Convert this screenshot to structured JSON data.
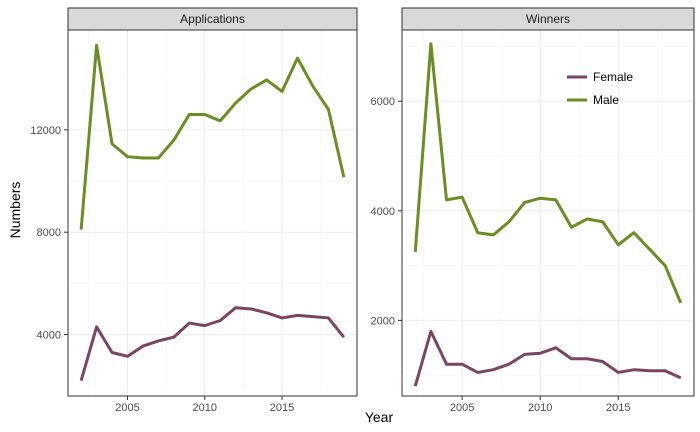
{
  "chart_data": {
    "type": "line",
    "xlabel": "Year",
    "ylabel": "Numbers",
    "x": [
      2002,
      2003,
      2004,
      2005,
      2006,
      2007,
      2008,
      2009,
      2010,
      2011,
      2012,
      2013,
      2014,
      2015,
      2016,
      2017,
      2018,
      2019
    ],
    "colors": {
      "Female": "#7a4560",
      "Male": "#6b8e23"
    },
    "legend": {
      "placement": "top-right inside Winners panel",
      "entries": [
        "Female",
        "Male"
      ]
    },
    "grid": true,
    "panels": [
      {
        "title": "Applications",
        "ylim": [
          1600,
          15900
        ],
        "yticks": [
          4000,
          8000,
          12000
        ],
        "ytick_labels": [
          "4000",
          "8000",
          "12000"
        ],
        "xticks": [
          2005,
          2010,
          2015
        ],
        "xtick_labels": [
          "2005",
          "2010",
          "2015"
        ],
        "series": [
          {
            "name": "Female",
            "values": [
              2200,
              4300,
              3300,
              3150,
              3550,
              3750,
              3900,
              4450,
              4350,
              4550,
              5050,
              5000,
              4850,
              4650,
              4750,
              4700,
              4650,
              3900
            ]
          },
          {
            "name": "Male",
            "values": [
              8100,
              15300,
              11450,
              10950,
              10900,
              10900,
              11600,
              12600,
              12600,
              12350,
              13050,
              13600,
              13950,
              13500,
              14800,
              13700,
              12800,
              10150
            ]
          }
        ]
      },
      {
        "title": "Winners",
        "ylim": [
          620,
          7300
        ],
        "yticks": [
          2000,
          4000,
          6000
        ],
        "ytick_labels": [
          "2000",
          "4000",
          "6000"
        ],
        "xticks": [
          2005,
          2010,
          2015
        ],
        "xtick_labels": [
          "2005",
          "2010",
          "2015"
        ],
        "series": [
          {
            "name": "Female",
            "values": [
              800,
              1800,
              1200,
              1200,
              1050,
              1100,
              1200,
              1380,
              1400,
              1500,
              1300,
              1300,
              1250,
              1050,
              1100,
              1080,
              1080,
              950
            ]
          },
          {
            "name": "Male",
            "values": [
              3250,
              7050,
              4200,
              4250,
              3600,
              3560,
              3800,
              4150,
              4230,
              4200,
              3700,
              3850,
              3800,
              3380,
              3600,
              3300,
              3000,
              2320
            ]
          }
        ]
      }
    ]
  }
}
